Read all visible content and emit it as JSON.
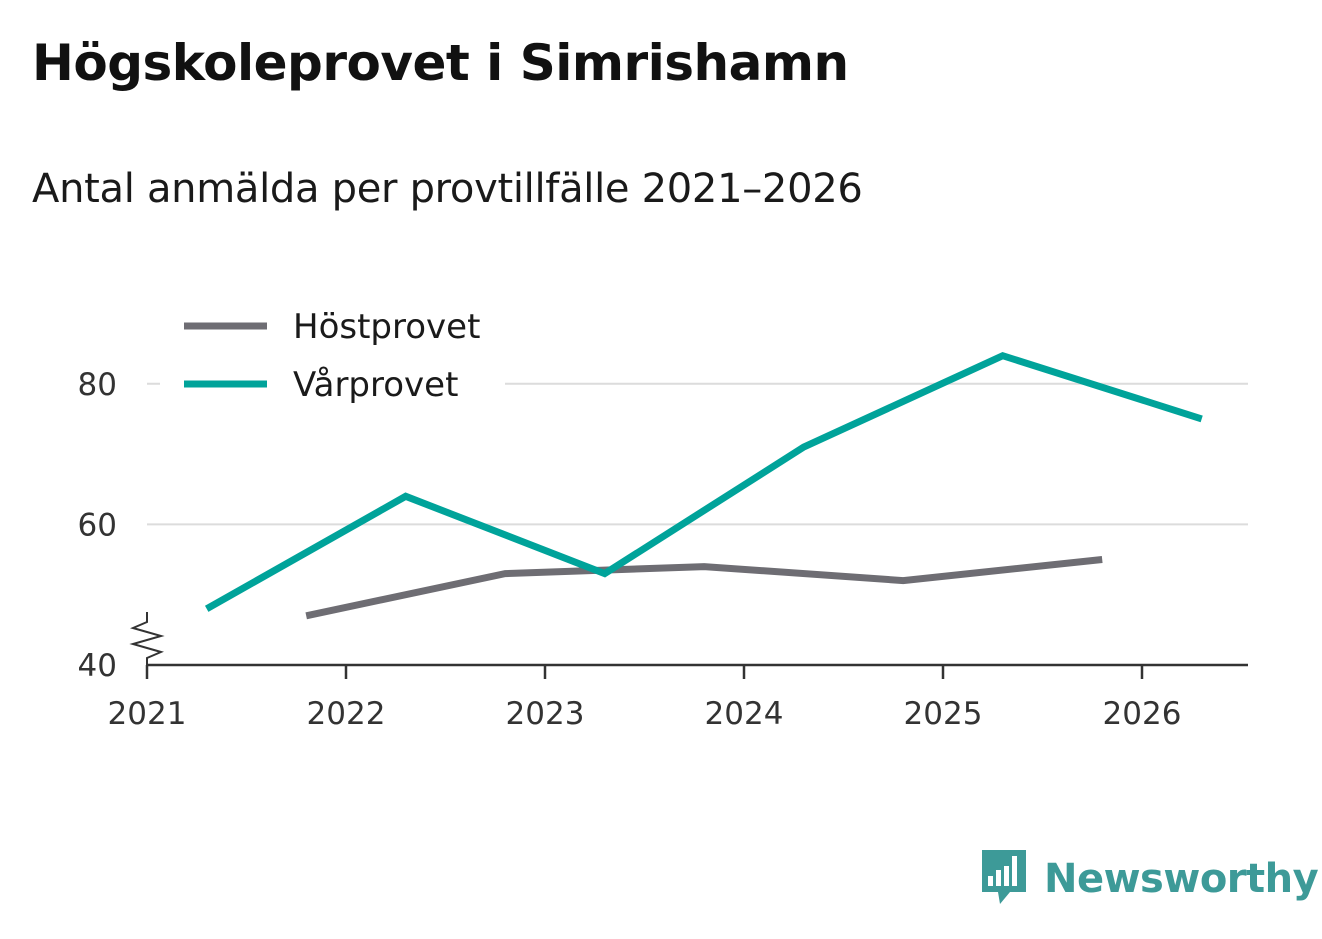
{
  "title": "Högskoleprovet i Simrishamn",
  "subtitle": "Antal anmälda per provtillfälle 2021–2026",
  "brand": {
    "name": "Newsworthy"
  },
  "chart_data": {
    "type": "line",
    "x_ticks": [
      "2021",
      "2022",
      "2023",
      "2024",
      "2025",
      "2026"
    ],
    "y_ticks": [
      "40",
      "60",
      "80"
    ],
    "ylim": [
      40,
      90
    ],
    "axis_break": true,
    "legend_position": "top-left",
    "series": [
      {
        "name": "Höstprovet",
        "color": "#6e6d73",
        "x": [
          2021.8,
          2022.8,
          2023.8,
          2024.8,
          2025.8
        ],
        "values": [
          47,
          53,
          54,
          52,
          55
        ]
      },
      {
        "name": "Vårprovet",
        "color": "#00a39a",
        "x": [
          2021.3,
          2022.3,
          2023.3,
          2024.3,
          2025.3,
          2026.3
        ],
        "values": [
          48,
          64,
          53,
          71,
          84,
          75
        ]
      }
    ]
  }
}
